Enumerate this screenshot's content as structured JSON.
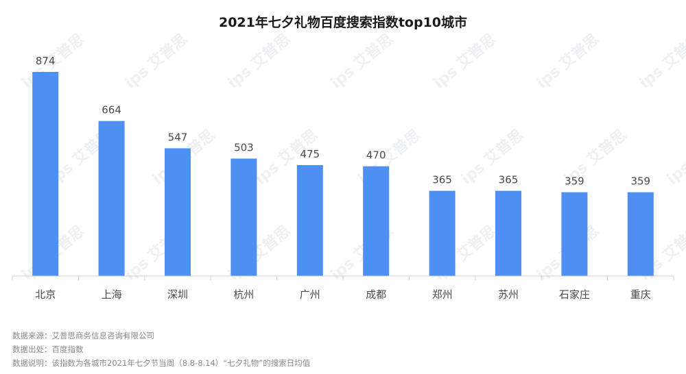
{
  "chart_data": {
    "type": "bar",
    "title": "2021年七夕礼物百度搜索指数top10城市",
    "categories": [
      "北京",
      "上海",
      "深圳",
      "杭州",
      "广州",
      "成都",
      "郑州",
      "苏州",
      "石家庄",
      "重庆"
    ],
    "values": [
      874,
      664,
      547,
      503,
      475,
      470,
      365,
      365,
      359,
      359
    ],
    "xlabel": "",
    "ylabel": "",
    "ylim": [
      0,
      874
    ],
    "grid": false,
    "legend": "none",
    "bar_color": "#4d8ff2",
    "data_labels": true
  },
  "notes": {
    "source": "数据来源：艾普思商务信息咨询有限公司",
    "origin": "数据出处：百度指数",
    "description": "数据说明：该指数为各城市2021年七夕节当周（8.8-8.14）“七夕礼物”的搜索日均值"
  },
  "watermark": {
    "text": "ips 艾普思"
  },
  "colors": {
    "bar": "#4d8ff2",
    "axis": "#d0d0d0",
    "text": "#4a4a4a",
    "note": "#8a8a8a"
  }
}
